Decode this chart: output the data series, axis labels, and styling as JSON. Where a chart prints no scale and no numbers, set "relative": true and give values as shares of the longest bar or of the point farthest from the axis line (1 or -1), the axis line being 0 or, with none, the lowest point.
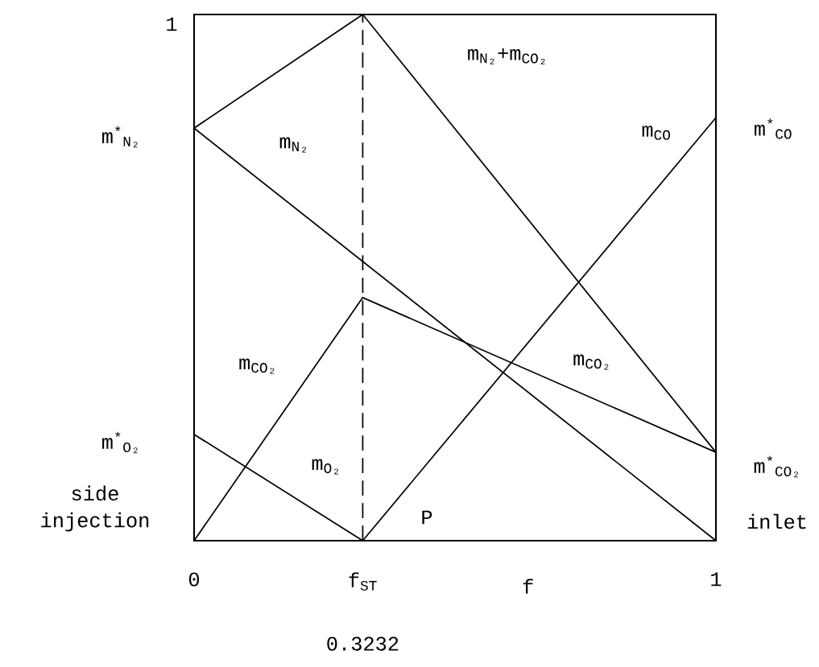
{
  "chart_data": {
    "type": "line",
    "relative": true,
    "xlabel": "f",
    "xlim": [
      0,
      1
    ],
    "xticks": [
      0,
      {
        "value": 0.3232,
        "label": "f$_{ST}$"
      },
      1
    ],
    "series": [
      {
        "color": "#000000",
        "x": [
          0,
          0.3232,
          1
        ],
        "values": [
          0.784,
          1,
          0.168
        ]
      },
      {
        "color": "#000000",
        "x": [
          0,
          1
        ],
        "values": [
          0.784,
          0
        ]
      },
      {
        "color": "#000000",
        "x": [
          0,
          0.3232,
          1
        ],
        "values": [
          0,
          0.462,
          0.168
        ]
      },
      {
        "color": "#000000",
        "x": [
          0,
          0.3232
        ],
        "values": [
          0.202,
          0
        ]
      },
      {
        "color": "#000000",
        "x": [
          0.3232,
          1
        ],
        "values": [
          0,
          0.804
        ]
      }
    ],
    "ref_lines": [
      {
        "axis": "x",
        "value": 0.3232,
        "label": "0.3232",
        "line_style": "dashed",
        "color": "#000000"
      }
    ],
    "annotations": [
      "1",
      "m$_{N₂}$+m$_{CO₂}$",
      "m$_{N₂}$",
      "m$_{CO}$",
      "m$^{*}$$_{CO}$",
      "m$^{*}$$_{N₂}$",
      "m$_{CO₂}$",
      "m$_{CO₂}$",
      "m$^{*}$$_{O₂}$",
      "m$_{O₂}$",
      "P",
      "m$^{*}$$_{CO₂}$",
      "inlet",
      "side injection"
    ]
  }
}
